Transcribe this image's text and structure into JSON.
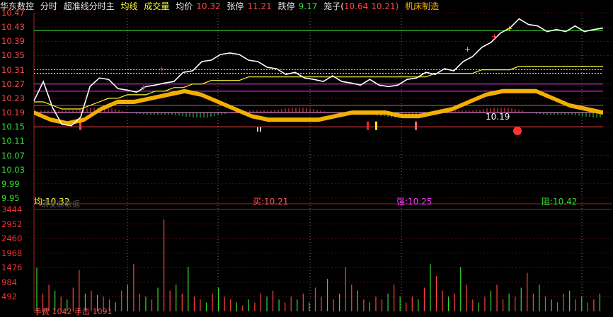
{
  "header": {
    "stock_name": "华东数控",
    "mode": "分时",
    "indicator": "超准线分时主",
    "avg_line_label": "均线",
    "volume_label": "成交量",
    "avg_price_label": "均价",
    "avg_price": "10.32",
    "limit_up_label": "张停",
    "limit_up": "11.21",
    "limit_down_label": "跌停",
    "limit_down": "9.17",
    "cage_label": "笼子(",
    "cage_high": "10.64",
    "cage_low": "10.21)",
    "sector": "机床制造"
  },
  "price_axis": {
    "ticks": [
      "10.47",
      "10.43",
      "10.39",
      "10.35",
      "10.31",
      "10.27",
      "10.23",
      "10.19",
      "10.15",
      "10.11",
      "10.07",
      "10.03",
      "9.99",
      "9.95"
    ]
  },
  "volume_axis": {
    "ticks": [
      "3444",
      "2952",
      "2460",
      "1968",
      "1476",
      "984",
      "492"
    ]
  },
  "labels": {
    "avg": "均:10.32",
    "avg_sub": "请安装数据",
    "buy": "买:10.21",
    "strong": "强:10.25",
    "resist": "阻:10.42",
    "price_mark": "10.19",
    "bottom_left": "手费 1042 手击 1091"
  },
  "colors": {
    "up": "#ff4444",
    "down": "#33dd33",
    "price_line": "#ffffff",
    "avg_line": "#ffff33",
    "band": "#ffb800",
    "magenta": "#ff33ff",
    "grid": "#8a1a1a"
  },
  "chart_data": {
    "type": "line",
    "title": "",
    "ylim": [
      9.95,
      10.47
    ],
    "price": [
      10.22,
      10.28,
      10.2,
      10.16,
      10.15,
      10.18,
      10.26,
      10.29,
      10.28,
      10.26,
      10.25,
      10.25,
      10.26,
      10.27,
      10.27,
      10.28,
      10.3,
      10.31,
      10.33,
      10.34,
      10.35,
      10.36,
      10.35,
      10.34,
      10.33,
      10.32,
      10.31,
      10.3,
      10.3,
      10.29,
      10.28,
      10.28,
      10.29,
      10.28,
      10.27,
      10.27,
      10.28,
      10.27,
      10.26,
      10.27,
      10.28,
      10.29,
      10.3,
      10.3,
      10.31,
      10.31,
      10.33,
      10.35,
      10.37,
      10.39,
      10.41,
      10.43,
      10.45,
      10.44,
      10.43,
      10.42,
      10.42,
      10.42,
      10.43,
      10.42,
      10.42,
      10.43
    ],
    "avg_price": [
      10.22,
      10.22,
      10.21,
      10.2,
      10.2,
      10.2,
      10.21,
      10.22,
      10.23,
      10.23,
      10.24,
      10.24,
      10.24,
      10.25,
      10.25,
      10.26,
      10.26,
      10.27,
      10.27,
      10.28,
      10.28,
      10.28,
      10.28,
      10.29,
      10.29,
      10.29,
      10.29,
      10.29,
      10.29,
      10.29,
      10.29,
      10.29,
      10.29,
      10.29,
      10.29,
      10.29,
      10.29,
      10.29,
      10.29,
      10.29,
      10.29,
      10.29,
      10.29,
      10.3,
      10.3,
      10.3,
      10.3,
      10.3,
      10.31,
      10.31,
      10.31,
      10.31,
      10.32,
      10.32,
      10.32,
      10.32,
      10.32,
      10.32,
      10.32,
      10.32,
      10.32,
      10.32
    ],
    "band": [
      10.19,
      10.17,
      10.16,
      10.17,
      10.2,
      10.22,
      10.22,
      10.23,
      10.24,
      10.25,
      10.24,
      10.22,
      10.2,
      10.18,
      10.17,
      10.17,
      10.17,
      10.17,
      10.18,
      10.19,
      10.19,
      10.19,
      10.18,
      10.18,
      10.19,
      10.2,
      10.22,
      10.24,
      10.25,
      10.25,
      10.25,
      10.23,
      10.21,
      10.2,
      10.19
    ],
    "horizontal_levels": [
      10.42,
      10.3,
      10.27,
      10.25,
      10.21,
      10.19,
      10.15
    ],
    "volume": [
      1476,
      600,
      900,
      700,
      500,
      400,
      800,
      1400,
      600,
      700,
      550,
      500,
      400,
      300,
      700,
      900,
      1600,
      600,
      500,
      400,
      800,
      3100,
      700,
      900,
      600,
      1500,
      500,
      400,
      300,
      600,
      800,
      500,
      400,
      300,
      200,
      400,
      300,
      600,
      500,
      700,
      400,
      300,
      500,
      400,
      600,
      300,
      800,
      500,
      1100,
      400,
      600,
      1500,
      900,
      700,
      400,
      300,
      500,
      400,
      600,
      900,
      500,
      300,
      500,
      400,
      800,
      1600,
      1200,
      700,
      500,
      600,
      1500,
      900,
      400,
      300,
      500,
      700,
      900,
      400,
      600,
      500,
      800,
      1300,
      600,
      900,
      500,
      400,
      300,
      600,
      700,
      400,
      500,
      300,
      400,
      600
    ],
    "volume_ylim": [
      0,
      3444
    ]
  }
}
